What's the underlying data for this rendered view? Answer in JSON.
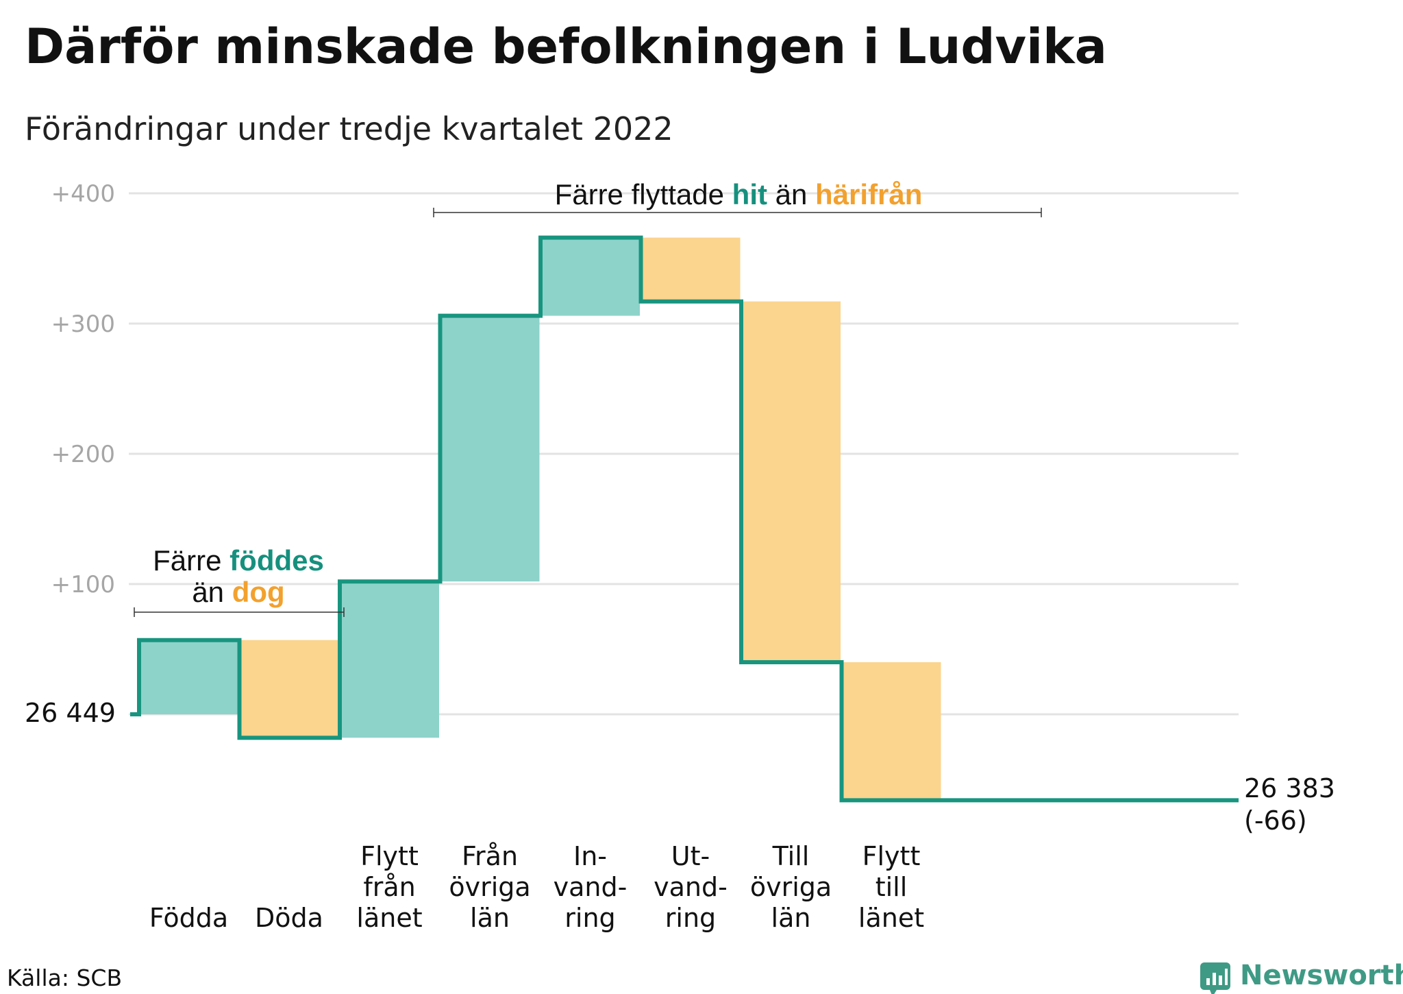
{
  "title": "Därför minskade befolkningen i Ludvika",
  "subtitle": "Förändringar under tredje kvartalet 2022",
  "source": "Källa: SCB",
  "brand": "Newsworthy",
  "colors": {
    "positive": "#8dd3ca",
    "negative": "#fbd48e",
    "line": "#18957f",
    "teal_text": "#16907e",
    "orange_text": "#f2a12e",
    "grid": "#e3e3e3"
  },
  "start_label": "26 449",
  "end_label_line1": "26 383",
  "end_label_line2": "(-66)",
  "annotations": {
    "births": {
      "pre": "Färre ",
      "hi1": "föddes",
      "line2_pre": "än ",
      "hi2": "dog"
    },
    "moves": {
      "pre": "Färre flyttade ",
      "hi1": "hit",
      "mid": " än ",
      "hi2": "härifrån"
    }
  },
  "chart_data": {
    "type": "waterfall",
    "title": "Därför minskade befolkningen i Ludvika",
    "subtitle": "Förändringar under tredje kvartalet 2022",
    "start_value": 26449,
    "end_value": 26383,
    "net_change": -66,
    "ylim": [
      -75,
      400
    ],
    "yticks": [
      100,
      200,
      300,
      400
    ],
    "ytick_labels": [
      "+100",
      "+200",
      "+300",
      "+400"
    ],
    "grid": true,
    "steps": [
      {
        "label_lines": [
          "Födda"
        ],
        "change": 57
      },
      {
        "label_lines": [
          "Döda"
        ],
        "change": -75
      },
      {
        "label_lines": [
          "Flytt",
          "från",
          "länet"
        ],
        "change": 120
      },
      {
        "label_lines": [
          "Från",
          "övriga",
          "län"
        ],
        "change": 204
      },
      {
        "label_lines": [
          "In-",
          "vand-",
          "ring"
        ],
        "change": 60
      },
      {
        "label_lines": [
          "Ut-",
          "vand-",
          "ring"
        ],
        "change": -49
      },
      {
        "label_lines": [
          "Till",
          "övriga",
          "län"
        ],
        "change": -277
      },
      {
        "label_lines": [
          "Flytt",
          "till",
          "länet"
        ],
        "change": -106
      }
    ]
  }
}
